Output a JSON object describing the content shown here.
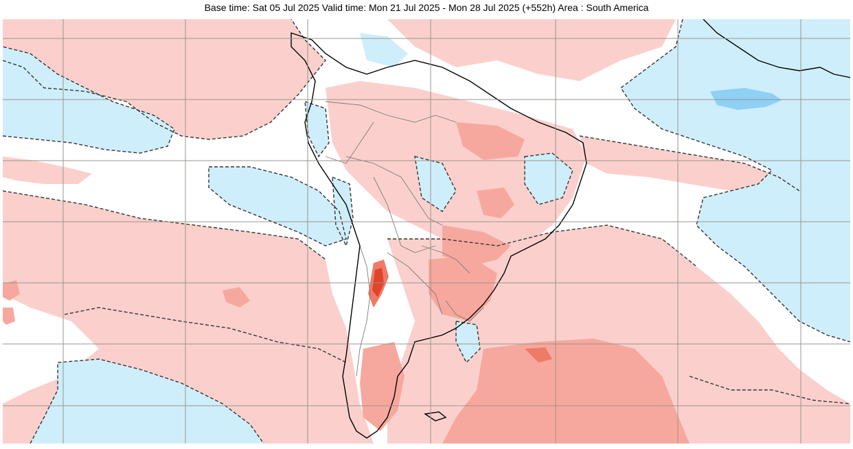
{
  "header": {
    "title": "Base time: Sat 05 Jul 2025 Valid time: Mon 21 Jul 2025 - Mon 28 Jul 2025 (+552h) Area : South America"
  },
  "map": {
    "area": "South America",
    "colors": {
      "ocean_white": "#ffffff",
      "warm_light": "#fbd0cc",
      "warm_medium": "#f7a89e",
      "warm_strong": "#ee7a68",
      "warm_extreme": "#e0442a",
      "cool_light": "#cfeefb",
      "cool_medium": "#8fd0f5",
      "coastline": "#000000",
      "borders": "#7a7a7a",
      "gridlines": "#9a948c",
      "zero_contour": "#333333"
    },
    "icons": {
      "map": "anomaly-map"
    }
  }
}
